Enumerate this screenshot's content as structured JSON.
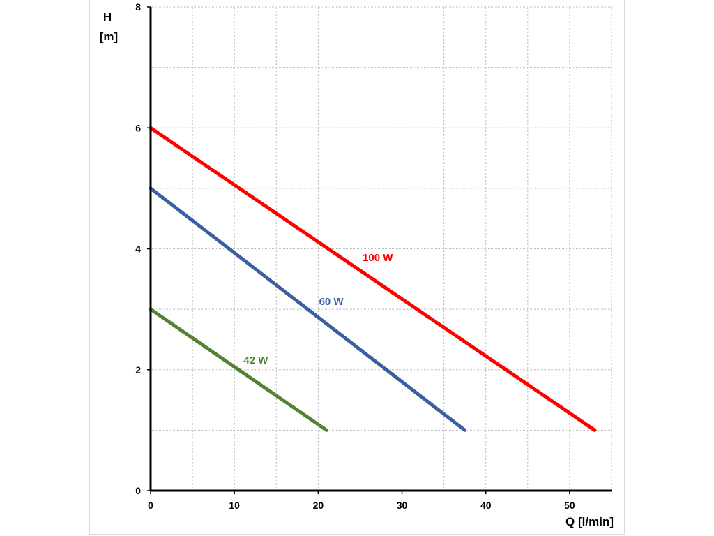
{
  "chart_data": {
    "type": "line",
    "xlabel": "Q [l/min]",
    "ylabel_line1": "H",
    "ylabel_line2": "[m]",
    "xlim": [
      0,
      55
    ],
    "ylim": [
      0,
      8
    ],
    "x_ticks": [
      0,
      10,
      20,
      30,
      40,
      50
    ],
    "y_ticks": [
      0,
      2,
      4,
      6,
      8
    ],
    "x_grid_step": 5,
    "y_grid_step": 1,
    "grid": true,
    "series": [
      {
        "name": "100 W",
        "color": "#ff0000",
        "points": [
          [
            0,
            6
          ],
          [
            53,
            1
          ]
        ],
        "label_at": [
          25.3,
          3.8
        ]
      },
      {
        "name": "60 W",
        "color": "#3b5fa0",
        "points": [
          [
            0,
            5
          ],
          [
            37.5,
            1
          ]
        ],
        "label_at": [
          20.1,
          3.07
        ]
      },
      {
        "name": "42 W",
        "color": "#548235",
        "points": [
          [
            0,
            3
          ],
          [
            21,
            1
          ]
        ],
        "label_at": [
          11.1,
          2.1
        ]
      }
    ]
  }
}
